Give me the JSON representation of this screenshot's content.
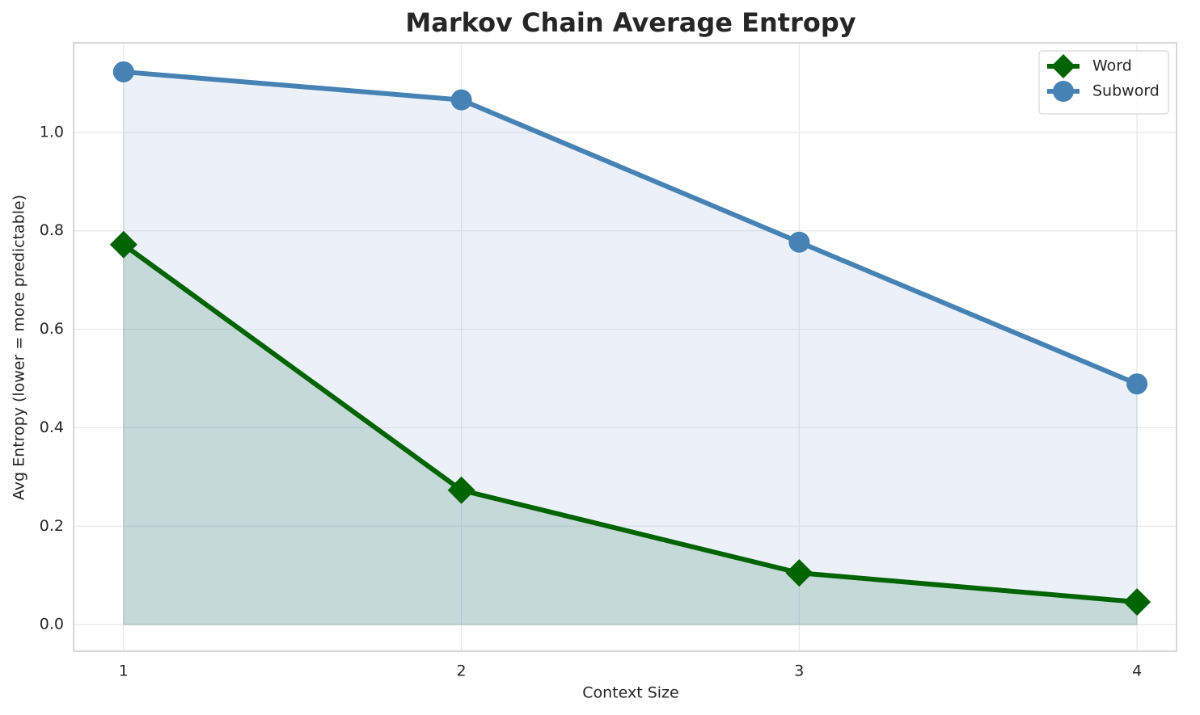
{
  "chart_data": {
    "type": "line",
    "title": "Markov Chain Average Entropy",
    "x_label": "Context Size",
    "y_label": "Avg Entropy (lower = more predictable)",
    "x": [
      1,
      2,
      3,
      4
    ],
    "series": [
      {
        "name": "Word",
        "color": "#006400",
        "marker": "diamond",
        "fill": "#2e7d5b",
        "values": [
          0.772,
          0.273,
          0.105,
          0.046
        ]
      },
      {
        "name": "Subword",
        "color": "#4682b4",
        "marker": "circle",
        "fill": "#b0c4e6",
        "values": [
          1.123,
          1.066,
          0.777,
          0.489
        ]
      }
    ],
    "xlim": [
      0.852,
      4.117
    ],
    "ylim": [
      -0.054,
      1.182
    ],
    "xticks": [
      1,
      2,
      3,
      4
    ],
    "yticks": [
      {
        "value": 0,
        "label": "0.0"
      },
      {
        "value": 0.2,
        "label": "0.2"
      },
      {
        "value": 0.4,
        "label": "0.4"
      },
      {
        "value": 0.6,
        "label": "0.6"
      },
      {
        "value": 0.8,
        "label": "0.8"
      },
      {
        "value": 1,
        "label": "1.0"
      }
    ],
    "grid": true,
    "legend": "upper right"
  }
}
